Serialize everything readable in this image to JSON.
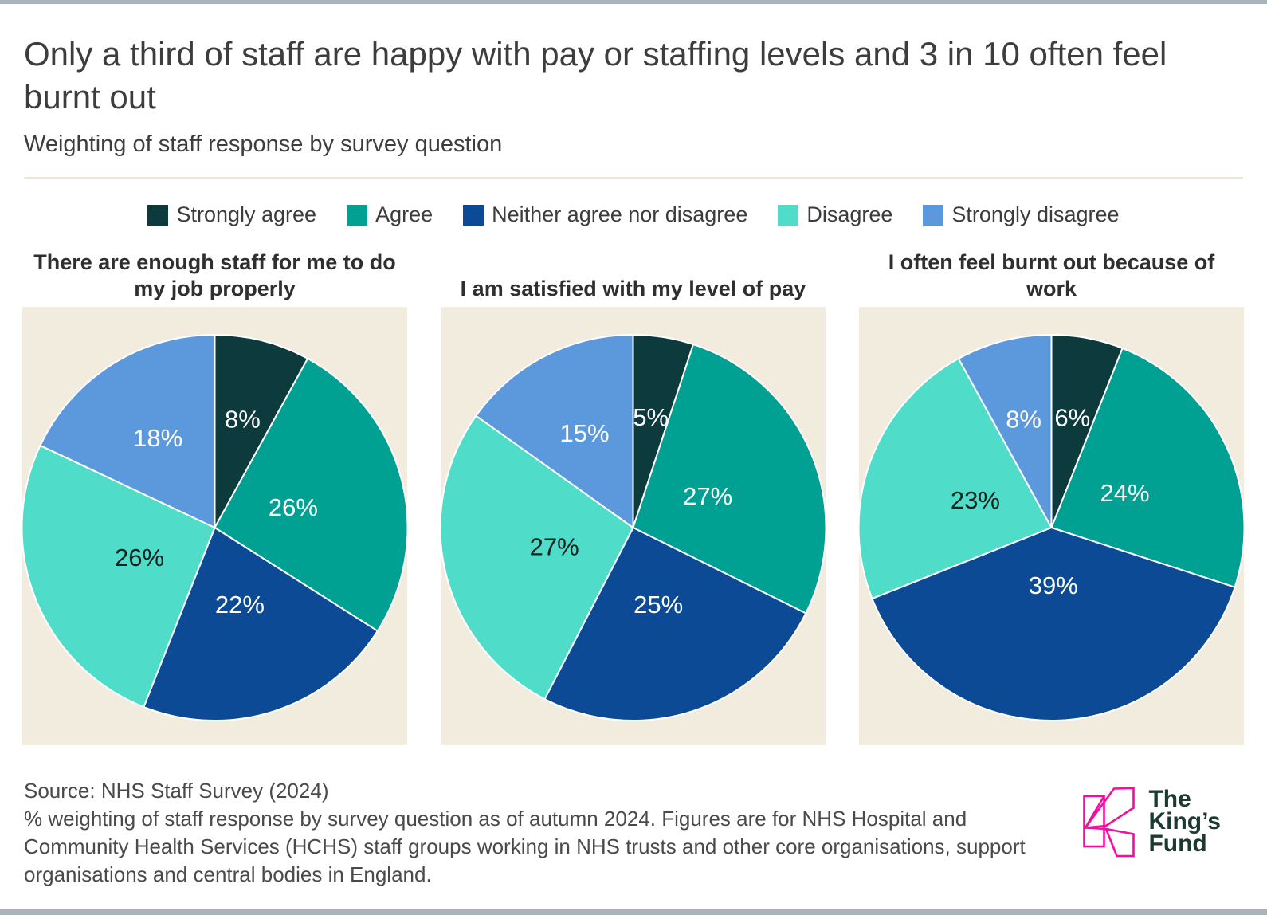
{
  "page": {
    "title": "Only a third of staff are happy with pay or staffing levels and 3 in 10 often feel burnt out",
    "subtitle": "Weighting of staff response by survey question"
  },
  "legend": {
    "items": [
      {
        "label": "Strongly agree",
        "color": "#0c3a3d",
        "text_color": "#ffffff"
      },
      {
        "label": "Agree",
        "color": "#00a092",
        "text_color": "#ffffff"
      },
      {
        "label": "Neither agree nor disagree",
        "color": "#0d4a96",
        "text_color": "#ffffff"
      },
      {
        "label": "Disagree",
        "color": "#4fdcc9",
        "text_color": "#10201e"
      },
      {
        "label": "Strongly disagree",
        "color": "#5c98dc",
        "text_color": "#ffffff"
      }
    ]
  },
  "chart_data": [
    {
      "type": "pie",
      "title": "There are enough staff for me to do my job properly",
      "categories": [
        "Strongly agree",
        "Agree",
        "Neither agree nor disagree",
        "Disagree",
        "Strongly disagree"
      ],
      "values": [
        8,
        26,
        22,
        26,
        18
      ],
      "unit": "%",
      "start_angle": "12-oclock",
      "direction": "clockwise",
      "legend_position": "top"
    },
    {
      "type": "pie",
      "title": "I am satisfied with my level of pay",
      "categories": [
        "Strongly agree",
        "Agree",
        "Neither agree nor disagree",
        "Disagree",
        "Strongly disagree"
      ],
      "values": [
        5,
        27,
        25,
        27,
        15
      ],
      "unit": "%",
      "start_angle": "12-oclock",
      "direction": "clockwise",
      "legend_position": "top"
    },
    {
      "type": "pie",
      "title": "I often feel burnt out because of work",
      "categories": [
        "Strongly agree",
        "Agree",
        "Neither agree nor disagree",
        "Disagree",
        "Strongly disagree"
      ],
      "values": [
        6,
        24,
        39,
        23,
        8
      ],
      "unit": "%",
      "start_angle": "12-oclock",
      "direction": "clockwise",
      "legend_position": "top"
    }
  ],
  "footer": {
    "source": "Source: NHS Staff Survey (2024)",
    "note": "% weighting of staff response by survey question as of autumn 2024. Figures are for NHS Hospital and Community Health Services (HCHS) staff groups working in NHS trusts and other core organisations, support organisations and central bodies in England."
  },
  "logo": {
    "lines": [
      "The",
      "King’s",
      "Fund"
    ],
    "pink": "#f40da0",
    "text_color": "#1d3a32"
  },
  "colors": {
    "panel_bg": "#f2ecdf",
    "bar": "#a9b4b8",
    "divider": "#ece5d5"
  }
}
